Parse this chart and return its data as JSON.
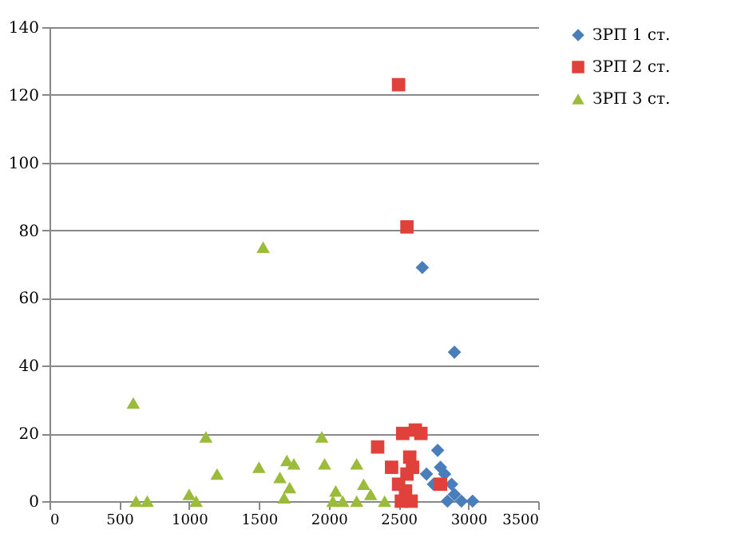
{
  "chart_data": {
    "type": "scatter",
    "xlim": [
      0,
      3500
    ],
    "xticks": [
      0,
      500,
      1000,
      1500,
      2000,
      2500,
      3000,
      3500
    ],
    "ylim": [
      0,
      140
    ],
    "yticks": [
      0,
      20,
      40,
      60,
      80,
      100,
      120,
      140
    ],
    "grid": "y",
    "legend": "right",
    "series": [
      {
        "name": "ЗРП 1 ст.",
        "color": "#4a7ebb",
        "marker": "diamond",
        "x": [
          2670,
          2900,
          2780,
          2800,
          2830,
          2750,
          2880,
          2900,
          2850,
          2950,
          3030,
          2700
        ],
        "values": [
          69,
          44,
          15,
          10,
          8,
          5,
          5,
          2,
          0,
          0,
          0,
          8
        ]
      },
      {
        "name": "ЗРП 2 ст.",
        "color": "#e0413b",
        "marker": "square",
        "x": [
          2500,
          2560,
          2350,
          2450,
          2530,
          2620,
          2660,
          2580,
          2600,
          2500,
          2550,
          2520,
          2590,
          2800,
          2560
        ],
        "values": [
          123,
          81,
          16,
          10,
          20,
          21,
          20,
          13,
          10,
          5,
          3,
          0,
          0,
          5,
          8
        ]
      },
      {
        "name": "ЗРП 3 ст.",
        "color": "#9bbb3b",
        "marker": "triangle",
        "x": [
          600,
          620,
          700,
          1000,
          1050,
          1120,
          1200,
          1530,
          1500,
          1650,
          1700,
          1750,
          1680,
          1720,
          1950,
          1970,
          2050,
          2030,
          2100,
          2200,
          2250,
          2300,
          2200,
          2400
        ],
        "values": [
          29,
          0,
          0,
          2,
          0,
          19,
          8,
          75,
          10,
          7,
          12,
          11,
          1,
          4,
          19,
          11,
          3,
          0,
          0,
          11,
          5,
          2,
          0,
          0
        ]
      }
    ]
  }
}
